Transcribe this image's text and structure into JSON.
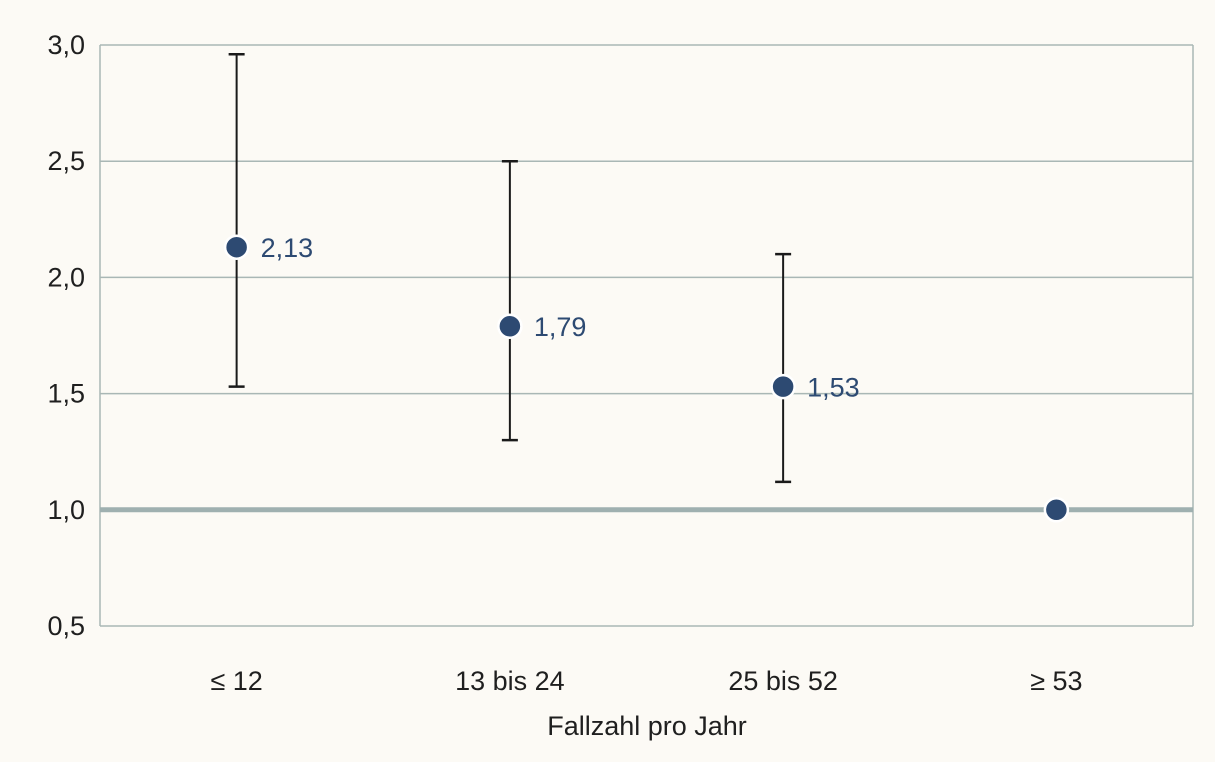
{
  "chart_data": {
    "type": "scatter",
    "title": "",
    "xlabel": "Fallzahl pro Jahr",
    "ylabel": "",
    "categories": [
      "≤ 12",
      "13 bis 24",
      "25 bis 52",
      "≥ 53"
    ],
    "values": [
      2.13,
      1.79,
      1.53,
      1.0
    ],
    "ci_lower": [
      1.53,
      1.3,
      1.12,
      null
    ],
    "ci_upper": [
      2.96,
      2.5,
      2.1,
      null
    ],
    "data_labels": [
      "2,13",
      "1,79",
      "1,53",
      ""
    ],
    "yticks": [
      0.5,
      1.0,
      1.5,
      2.0,
      2.5,
      3.0
    ],
    "ytick_labels": [
      "0,5",
      "1,0",
      "1,5",
      "2,0",
      "2,5",
      "3,0"
    ],
    "ylim": [
      0.5,
      3.0
    ],
    "reference_line": 1.0,
    "grid": true,
    "colors": {
      "point": "#2d4a72",
      "error_bar": "#1a1a1a",
      "grid": "#a9b7b5",
      "reference_line": "#9fb0b0",
      "background": "#fcfaf5",
      "label": "#2d4a72"
    }
  }
}
